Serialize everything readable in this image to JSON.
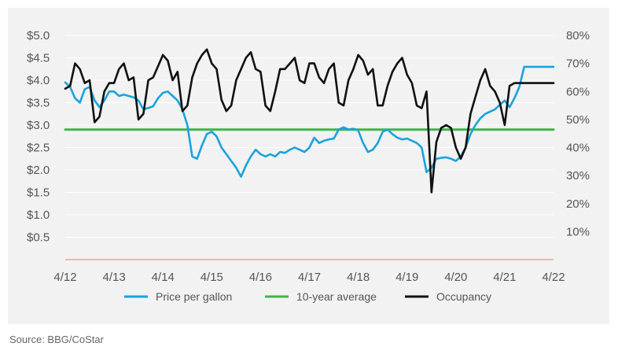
{
  "chart_data": {
    "type": "line",
    "title": "",
    "x_tick_labels": [
      "4/12",
      "4/13",
      "4/14",
      "4/15",
      "4/16",
      "4/17",
      "4/18",
      "4/19",
      "4/20",
      "4/21",
      "4/22"
    ],
    "x_range": [
      2012.25,
      2022.25
    ],
    "left_axis": {
      "label": "",
      "range": [
        0,
        5.0
      ],
      "ticks": [
        0.5,
        1.0,
        1.5,
        2.0,
        2.5,
        3.0,
        3.5,
        4.0,
        4.5,
        5.0
      ],
      "tick_labels": [
        "$0.5",
        "$1.0",
        "$1.5",
        "$2.0",
        "$2.5",
        "$3.0",
        "$3.5",
        "$4.0",
        "$4.5",
        "$5.0"
      ]
    },
    "right_axis": {
      "label": "",
      "range": [
        0,
        80
      ],
      "ticks": [
        10,
        20,
        30,
        40,
        50,
        60,
        70,
        80
      ],
      "tick_labels": [
        "10%",
        "20%",
        "30%",
        "40%",
        "50%",
        "60%",
        "70%",
        "80%"
      ]
    },
    "series": [
      {
        "name": "Price per gallon",
        "axis": "left",
        "color": "#1aa3dd",
        "x": [
          2012.25,
          2012.35,
          2012.45,
          2012.55,
          2012.65,
          2012.75,
          2012.85,
          2012.95,
          2013.05,
          2013.15,
          2013.25,
          2013.35,
          2013.45,
          2013.55,
          2013.65,
          2013.75,
          2013.85,
          2013.95,
          2014.05,
          2014.15,
          2014.25,
          2014.35,
          2014.45,
          2014.55,
          2014.65,
          2014.75,
          2014.85,
          2014.95,
          2015.05,
          2015.15,
          2015.25,
          2015.35,
          2015.45,
          2015.55,
          2015.65,
          2015.75,
          2015.85,
          2015.95,
          2016.05,
          2016.15,
          2016.25,
          2016.35,
          2016.45,
          2016.55,
          2016.65,
          2016.75,
          2016.85,
          2016.95,
          2017.05,
          2017.15,
          2017.25,
          2017.35,
          2017.45,
          2017.55,
          2017.65,
          2017.75,
          2017.85,
          2017.95,
          2018.05,
          2018.15,
          2018.25,
          2018.35,
          2018.45,
          2018.55,
          2018.65,
          2018.75,
          2018.85,
          2018.95,
          2019.05,
          2019.15,
          2019.25,
          2019.35,
          2019.45,
          2019.55,
          2019.65,
          2019.75,
          2019.85,
          2019.95,
          2020.05,
          2020.15,
          2020.25,
          2020.35,
          2020.45,
          2020.55,
          2020.65,
          2020.75,
          2020.85,
          2020.95,
          2021.05,
          2021.15,
          2021.25,
          2021.35,
          2021.45,
          2021.55,
          2021.65,
          2021.75,
          2021.85,
          2021.95,
          2022.05,
          2022.15,
          2022.25
        ],
        "values": [
          3.95,
          3.85,
          3.6,
          3.5,
          3.8,
          3.85,
          3.55,
          3.4,
          3.55,
          3.75,
          3.75,
          3.65,
          3.68,
          3.65,
          3.62,
          3.55,
          3.35,
          3.38,
          3.42,
          3.6,
          3.72,
          3.75,
          3.65,
          3.55,
          3.35,
          3.0,
          2.3,
          2.25,
          2.55,
          2.8,
          2.85,
          2.75,
          2.5,
          2.35,
          2.2,
          2.05,
          1.85,
          2.1,
          2.3,
          2.45,
          2.35,
          2.3,
          2.35,
          2.3,
          2.4,
          2.38,
          2.45,
          2.5,
          2.45,
          2.4,
          2.5,
          2.72,
          2.6,
          2.65,
          2.68,
          2.7,
          2.9,
          2.95,
          2.9,
          2.92,
          2.88,
          2.6,
          2.4,
          2.45,
          2.6,
          2.85,
          2.9,
          2.8,
          2.72,
          2.68,
          2.7,
          2.65,
          2.6,
          2.5,
          1.95,
          2.05,
          2.25,
          2.27,
          2.28,
          2.25,
          2.2,
          2.3,
          2.5,
          2.8,
          3.0,
          3.15,
          3.25,
          3.3,
          3.35,
          3.45,
          3.55,
          3.4,
          3.6,
          3.85,
          4.3,
          4.3,
          4.3,
          4.3,
          4.3,
          4.3,
          4.3
        ]
      },
      {
        "name": "10-year average",
        "axis": "left",
        "color": "#3fb54a",
        "x": [
          2012.25,
          2022.25
        ],
        "values": [
          2.9,
          2.9
        ]
      },
      {
        "name": "Occupancy",
        "axis": "right",
        "color": "#111111",
        "x": [
          2012.25,
          2012.35,
          2012.45,
          2012.55,
          2012.65,
          2012.75,
          2012.85,
          2012.95,
          2013.05,
          2013.15,
          2013.25,
          2013.35,
          2013.45,
          2013.55,
          2013.65,
          2013.75,
          2013.85,
          2013.95,
          2014.05,
          2014.15,
          2014.25,
          2014.35,
          2014.45,
          2014.55,
          2014.65,
          2014.75,
          2014.85,
          2014.95,
          2015.05,
          2015.15,
          2015.25,
          2015.35,
          2015.45,
          2015.55,
          2015.65,
          2015.75,
          2015.85,
          2015.95,
          2016.05,
          2016.15,
          2016.25,
          2016.35,
          2016.45,
          2016.55,
          2016.65,
          2016.75,
          2016.85,
          2016.95,
          2017.05,
          2017.15,
          2017.25,
          2017.35,
          2017.45,
          2017.55,
          2017.65,
          2017.75,
          2017.85,
          2017.95,
          2018.05,
          2018.15,
          2018.25,
          2018.35,
          2018.45,
          2018.55,
          2018.65,
          2018.75,
          2018.85,
          2018.95,
          2019.05,
          2019.15,
          2019.25,
          2019.35,
          2019.45,
          2019.55,
          2019.65,
          2019.75,
          2019.85,
          2019.95,
          2020.05,
          2020.15,
          2020.25,
          2020.35,
          2020.45,
          2020.55,
          2020.65,
          2020.75,
          2020.85,
          2020.95,
          2021.05,
          2021.15,
          2021.25,
          2021.35,
          2021.45,
          2021.55,
          2021.65,
          2021.75,
          2021.85,
          2021.95,
          2022.05,
          2022.15,
          2022.25
        ],
        "values": [
          61,
          62,
          70,
          68,
          63,
          64,
          49,
          51,
          60,
          63,
          63,
          68,
          70,
          64,
          65,
          50,
          52,
          64,
          65,
          69,
          73,
          71,
          64,
          67,
          53,
          55,
          65,
          70,
          73,
          75,
          70,
          68,
          57,
          53,
          55,
          64,
          68,
          72,
          74,
          68,
          67,
          55,
          53,
          60,
          68,
          68,
          70,
          72,
          64,
          63,
          70,
          70,
          65,
          63,
          68,
          70,
          56,
          55,
          64,
          68,
          73,
          71,
          66,
          68,
          55,
          55,
          62,
          67,
          70,
          72,
          66,
          63,
          55,
          54,
          60,
          24,
          42,
          47,
          48,
          47,
          40,
          36,
          40,
          52,
          58,
          64,
          68,
          62,
          60,
          56,
          48,
          62,
          63,
          63,
          63,
          63,
          63,
          63,
          63,
          63,
          63
        ]
      }
    ],
    "legend": [
      "Price per gallon",
      "10-year average",
      "Occupancy"
    ],
    "legend_position": "bottom",
    "grid": "horizontal",
    "source": "Source: BBG/CoStar"
  }
}
